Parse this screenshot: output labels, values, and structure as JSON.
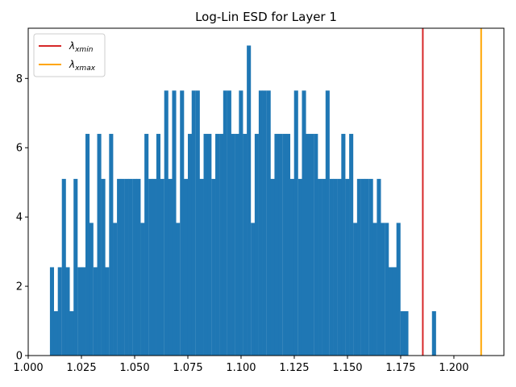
{
  "chart_data": {
    "type": "bar",
    "title": "Log-Lin ESD for Layer 1",
    "xlabel": "",
    "ylabel": "",
    "xlim": [
      1.0,
      1.2235
    ],
    "ylim": [
      0,
      9.45
    ],
    "bin_width": 0.00185,
    "bar_color": "#1f77b4",
    "x_ticks": [
      1.0,
      1.025,
      1.05,
      1.075,
      1.1,
      1.125,
      1.15,
      1.175,
      1.2
    ],
    "x_tick_labels": [
      "1.000",
      "1.025",
      "1.050",
      "1.075",
      "1.100",
      "1.125",
      "1.150",
      "1.175",
      "1.200"
    ],
    "y_ticks": [
      0,
      2,
      4,
      6,
      8
    ],
    "y_tick_labels": [
      "0",
      "2",
      "4",
      "6",
      "8"
    ],
    "bins_start": [
      1.0102,
      1.0121,
      1.0139,
      1.0158,
      1.0176,
      1.0195,
      1.0213,
      1.0232,
      1.025,
      1.0269,
      1.0287,
      1.0306,
      1.0324,
      1.0343,
      1.0361,
      1.038,
      1.0398,
      1.0417,
      1.0435,
      1.0454,
      1.0472,
      1.0491,
      1.0509,
      1.0528,
      1.0546,
      1.0565,
      1.0583,
      1.0602,
      1.062,
      1.0639,
      1.0657,
      1.0676,
      1.0694,
      1.0713,
      1.0731,
      1.075,
      1.0768,
      1.0787,
      1.0805,
      1.0824,
      1.0842,
      1.0861,
      1.0879,
      1.0898,
      1.0916,
      1.0935,
      1.0953,
      1.0972,
      1.099,
      1.1009,
      1.1027,
      1.1046,
      1.1064,
      1.1083,
      1.1101,
      1.112,
      1.1138,
      1.1157,
      1.1175,
      1.1194,
      1.1212,
      1.1231,
      1.1249,
      1.1268,
      1.1286,
      1.1305,
      1.1323,
      1.1342,
      1.136,
      1.1379,
      1.1397,
      1.1416,
      1.1434,
      1.1453,
      1.1471,
      1.149,
      1.1508,
      1.1527,
      1.1545,
      1.1564,
      1.1582,
      1.1601,
      1.1619,
      1.1638,
      1.1656,
      1.1675,
      1.1693,
      1.1712,
      1.173,
      1.1749,
      1.1767,
      1.1786,
      1.1804,
      1.1823,
      1.1841,
      1.186,
      1.1878,
      1.1897,
      1.1915,
      1.1934,
      1.1952,
      1.1971,
      1.1989,
      1.2008,
      1.2026,
      1.2045,
      1.2063,
      1.2082,
      1.21
    ],
    "values": [
      2.55,
      1.28,
      2.55,
      5.1,
      2.55,
      1.28,
      5.1,
      2.55,
      2.55,
      6.4,
      3.83,
      2.55,
      6.4,
      5.1,
      2.55,
      6.4,
      3.83,
      5.1,
      5.1,
      5.1,
      5.1,
      5.1,
      5.1,
      3.83,
      6.4,
      5.1,
      5.1,
      6.4,
      5.1,
      7.65,
      5.1,
      7.65,
      3.83,
      7.65,
      5.1,
      6.4,
      7.65,
      7.65,
      5.1,
      6.4,
      6.4,
      5.1,
      6.4,
      6.4,
      7.65,
      7.65,
      6.4,
      6.4,
      7.65,
      6.4,
      8.95,
      3.83,
      6.4,
      7.65,
      7.65,
      7.65,
      5.1,
      6.4,
      6.4,
      6.4,
      6.4,
      5.1,
      7.65,
      5.1,
      7.65,
      6.4,
      6.4,
      6.4,
      5.1,
      5.1,
      7.65,
      5.1,
      5.1,
      5.1,
      6.4,
      5.1,
      6.4,
      3.83,
      5.1,
      5.1,
      5.1,
      5.1,
      3.83,
      5.1,
      3.83,
      3.83,
      2.55,
      2.55,
      3.83,
      1.28,
      1.28,
      0,
      0,
      0,
      0,
      0,
      0,
      1.28,
      0,
      0,
      0,
      0,
      0,
      0,
      0,
      0,
      0,
      0,
      0
    ],
    "vlines": [
      {
        "name": "λxmin",
        "x": 1.1854,
        "color": "#d62728"
      },
      {
        "name": "λxmax",
        "x": 1.2128,
        "color": "#ffa500"
      }
    ],
    "legend": {
      "placement": "top-left",
      "entries": [
        {
          "symbol": "λ",
          "subscript": "xmin",
          "color": "#d62728"
        },
        {
          "symbol": "λ",
          "subscript": "xmax",
          "color": "#ffa500"
        }
      ]
    }
  }
}
